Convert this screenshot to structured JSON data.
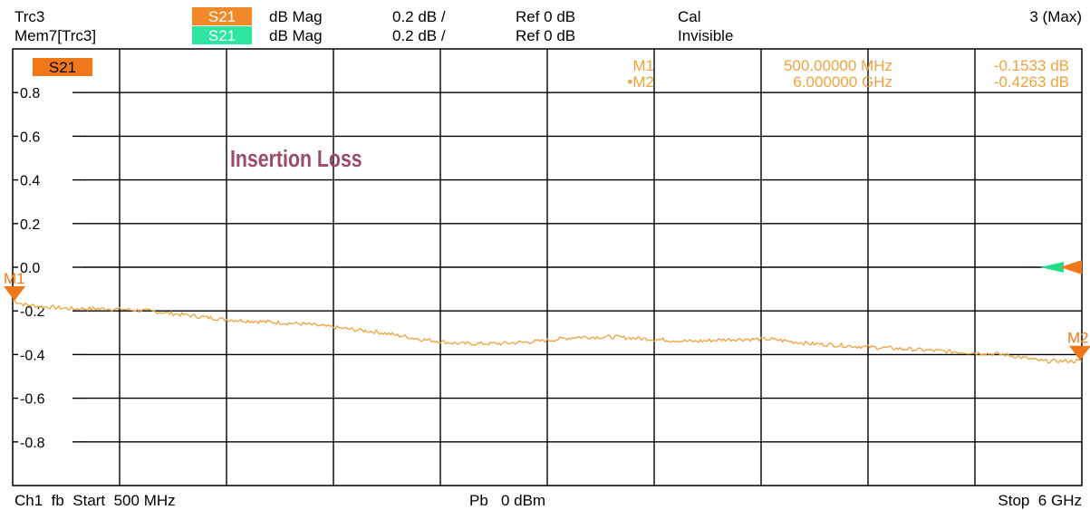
{
  "header": {
    "rows": [
      {
        "trace": "Trc3",
        "param": "S21",
        "format": "dB Mag",
        "scale": "0.2 dB /",
        "ref": "Ref 0 dB",
        "status": "Cal",
        "color": "#f08a28"
      },
      {
        "trace": "Mem7[Trc3]",
        "param": "S21",
        "format": "dB Mag",
        "scale": "0.2 dB /",
        "ref": "Ref 0 dB",
        "status": "Invisible",
        "color": "#2ee6a0"
      }
    ],
    "right_label": "3 (Max)"
  },
  "trace_color": "#f0a23c",
  "marker_color": "#f07818",
  "memory_color": "#22dd88",
  "diagram_label": "S21",
  "marker_table": [
    {
      "name": "M1",
      "freq": "500.00000 MHz",
      "value": "-0.1533 dB"
    },
    {
      "name": "•M2",
      "freq": "6.000000 GHz",
      "value": "-0.4263 dB"
    }
  ],
  "annotation": {
    "text": "Insertion Loss",
    "color": "#9a4a6a"
  },
  "footer": {
    "left": "Ch1  fb  Start  500 MHz",
    "center": "Pb   0 dBm",
    "right": "Stop  6 GHz"
  },
  "chart_data": {
    "type": "line",
    "ylabel": "dB",
    "yticks": [
      0.8,
      0.6,
      0.4,
      0.2,
      0.0,
      -0.2,
      -0.4,
      -0.6,
      -0.8
    ],
    "ytick_labels": [
      "0.8",
      "0.6",
      "0.4",
      "0.2",
      "0.0",
      "-0.2",
      "-0.4",
      "-0.6",
      "-0.8"
    ],
    "ylim": [
      -1.0,
      1.0
    ],
    "xlim_ghz": [
      0.5,
      6.0
    ],
    "x_divisions": 10,
    "grid": true,
    "series": [
      {
        "x": [
          0.5,
          0.55,
          0.65,
          0.8,
          1.0,
          1.2,
          1.4,
          1.6,
          1.8,
          2.0,
          2.2,
          2.4,
          2.6,
          2.8,
          3.0,
          3.2,
          3.4,
          3.6,
          3.8,
          4.0,
          4.2,
          4.4,
          4.6,
          4.8,
          5.0,
          5.2,
          5.4,
          5.6,
          5.8,
          6.0
        ],
        "values": [
          -0.15,
          -0.17,
          -0.18,
          -0.19,
          -0.19,
          -0.2,
          -0.22,
          -0.24,
          -0.25,
          -0.26,
          -0.28,
          -0.3,
          -0.33,
          -0.35,
          -0.35,
          -0.34,
          -0.32,
          -0.32,
          -0.33,
          -0.34,
          -0.33,
          -0.33,
          -0.35,
          -0.36,
          -0.37,
          -0.38,
          -0.39,
          -0.4,
          -0.43,
          -0.43
        ]
      }
    ],
    "markers": [
      {
        "name": "M1",
        "label": "M1",
        "x": 0.5,
        "value": -0.1533
      },
      {
        "name": "M2",
        "label": "M2",
        "x": 6.0,
        "value": -0.4263
      }
    ]
  }
}
